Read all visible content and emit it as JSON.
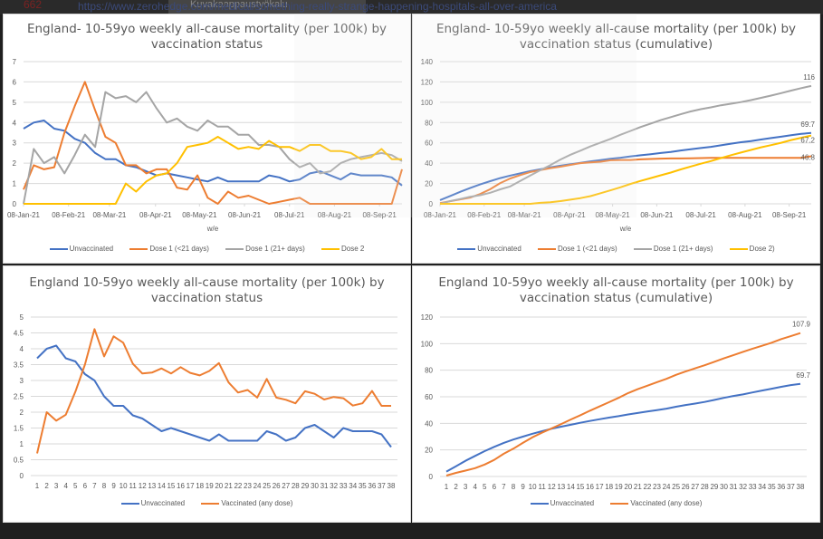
{
  "browser": {
    "counter": "662",
    "url": "https://www.zerohedge.com/medical/something-really-strange-happening-hospitals-all-over-america",
    "ghost_text": "Kuvakaappaustyökalu"
  },
  "colors": {
    "unvaccinated": "#4472c4",
    "dose1_lt21": "#ed7d31",
    "dose1_21plus": "#a5a5a5",
    "dose2": "#ffc000",
    "vaccinated_any": "#ed7d31",
    "grid": "#d9d9d9",
    "axis_text": "#595959"
  },
  "chart_data": [
    {
      "id": "tl",
      "type": "line",
      "title_line1": "England- 10-59yo weekly all-cause mortality (per 100k) by",
      "title_line2": "vaccination status",
      "xlabel": "w/e",
      "ylabel": "",
      "ylim": [
        0,
        7
      ],
      "yticks": [
        0,
        1,
        2,
        3,
        4,
        5,
        6,
        7
      ],
      "grid": true,
      "legend_position": "bottom",
      "x_tick_labels": [
        "08-Jan-21",
        "08-Feb-21",
        "08-Mar-21",
        "08-Apr-21",
        "08-May-21",
        "08-Jun-21",
        "08-Jul-21",
        "08-Aug-21",
        "08-Sep-21"
      ],
      "x_tick_week_index": [
        0,
        4.4,
        8.4,
        12.9,
        17.2,
        21.6,
        26.0,
        30.4,
        34.8
      ],
      "n_points": 38,
      "series": [
        {
          "name": "Unvaccinated",
          "color_key": "unvaccinated",
          "values": [
            3.7,
            4.0,
            4.1,
            3.7,
            3.6,
            3.2,
            3.0,
            2.5,
            2.2,
            2.2,
            1.9,
            1.8,
            1.6,
            1.4,
            1.5,
            1.4,
            1.3,
            1.2,
            1.1,
            1.3,
            1.1,
            1.1,
            1.1,
            1.1,
            1.4,
            1.3,
            1.1,
            1.2,
            1.5,
            1.6,
            1.4,
            1.2,
            1.5,
            1.4,
            1.4,
            1.4,
            1.3,
            0.9
          ]
        },
        {
          "name": "Dose 1 (<21 days)",
          "color_key": "dose1_lt21",
          "values": [
            0.7,
            1.9,
            1.7,
            1.8,
            3.5,
            4.8,
            6.0,
            4.6,
            3.3,
            3.0,
            1.9,
            1.9,
            1.5,
            1.7,
            1.7,
            0.8,
            0.7,
            1.4,
            0.3,
            0.0,
            0.6,
            0.3,
            0.4,
            0.2,
            0.0,
            0.1,
            0.2,
            0.3,
            0.0,
            0.0,
            0.0,
            0.0,
            0.0,
            0.0,
            0.0,
            0.0,
            0.0,
            1.7
          ]
        },
        {
          "name": "Dose 1 (21+ days)",
          "color_key": "dose1_21plus",
          "values": [
            0.0,
            2.7,
            2.0,
            2.3,
            1.5,
            2.4,
            3.4,
            2.8,
            5.5,
            5.2,
            5.3,
            5.0,
            5.5,
            4.7,
            4.0,
            4.2,
            3.8,
            3.6,
            4.1,
            3.8,
            3.8,
            3.4,
            3.4,
            2.9,
            2.9,
            2.8,
            2.2,
            1.8,
            2.0,
            1.5,
            1.6,
            2.0,
            2.2,
            2.3,
            2.4,
            2.5,
            2.4,
            2.1
          ]
        },
        {
          "name": "Dose 2",
          "color_key": "dose2",
          "values": [
            0,
            0,
            0,
            0,
            0,
            0,
            0,
            0,
            0,
            0,
            1.0,
            0.6,
            1.1,
            1.4,
            1.5,
            2.0,
            2.8,
            2.9,
            3.0,
            3.3,
            3.0,
            2.7,
            2.8,
            2.7,
            3.1,
            2.8,
            2.8,
            2.6,
            2.9,
            2.9,
            2.6,
            2.6,
            2.5,
            2.2,
            2.3,
            2.7,
            2.2,
            2.2
          ]
        }
      ]
    },
    {
      "id": "tr",
      "type": "line",
      "title_line1": "England- 10-59yo weekly all-cause mortality (per 100k) by",
      "title_line2": "vaccination status (cumulative)",
      "xlabel": "w/e",
      "ylabel": "",
      "ylim": [
        0,
        140
      ],
      "yticks": [
        0,
        20,
        40,
        60,
        80,
        100,
        120,
        140
      ],
      "grid": true,
      "legend_position": "bottom",
      "x_tick_labels": [
        "08-Jan-21",
        "08-Feb-21",
        "08-Mar-21",
        "08-Apr-21",
        "08-May-21",
        "08-Jun-21",
        "08-Jul-21",
        "08-Aug-21",
        "08-Sep-21"
      ],
      "x_tick_week_index": [
        0,
        4.4,
        8.4,
        12.9,
        17.2,
        21.6,
        26.0,
        30.4,
        34.8
      ],
      "n_points": 38,
      "end_labels": [
        "69.7",
        "46.8",
        "116",
        "67.2"
      ],
      "series": [
        {
          "name": "Unvaccinated",
          "color_key": "unvaccinated",
          "values": [
            3.7,
            7.7,
            11.8,
            15.5,
            19.1,
            22.3,
            25.3,
            27.8,
            30.0,
            32.2,
            34.1,
            35.9,
            37.5,
            38.9,
            40.4,
            41.8,
            43.1,
            44.3,
            45.4,
            46.7,
            47.8,
            48.9,
            50.0,
            51.1,
            52.5,
            53.8,
            54.9,
            56.1,
            57.6,
            59.2,
            60.6,
            61.8,
            63.3,
            64.7,
            66.1,
            67.5,
            68.8,
            69.7
          ]
        },
        {
          "name": "Dose 1 (<21 days)",
          "color_key": "dose1_lt21",
          "values": [
            0.7,
            2.6,
            4.3,
            6.1,
            9.6,
            14.4,
            20.4,
            25.0,
            28.3,
            31.3,
            33.2,
            35.1,
            36.6,
            38.3,
            40.0,
            40.8,
            41.5,
            42.9,
            43.2,
            43.2,
            43.8,
            44.1,
            44.5,
            44.7,
            44.7,
            44.8,
            45.0,
            45.3,
            45.3,
            45.3,
            45.3,
            45.3,
            45.3,
            45.3,
            45.3,
            45.3,
            45.3,
            46.8
          ]
        },
        {
          "name": "Dose 1 (21+ days)",
          "color_key": "dose1_21plus",
          "values": [
            0.0,
            2.7,
            4.7,
            7.0,
            8.5,
            10.9,
            14.3,
            17.1,
            22.6,
            27.8,
            33.1,
            38.1,
            43.6,
            48.3,
            52.3,
            56.5,
            60.3,
            63.9,
            68.0,
            71.8,
            75.6,
            79.0,
            82.4,
            85.3,
            88.2,
            91.0,
            93.2,
            95.0,
            97.0,
            98.5,
            100.1,
            102.1,
            104.3,
            106.6,
            109.0,
            111.5,
            113.9,
            116.0
          ]
        },
        {
          "name": "Dose 2)",
          "color_key": "dose2",
          "values": [
            0,
            0,
            0,
            0,
            0,
            0,
            0,
            0,
            0,
            0,
            1.0,
            1.6,
            2.7,
            4.1,
            5.6,
            7.6,
            10.4,
            13.3,
            16.3,
            19.6,
            22.6,
            25.3,
            28.1,
            30.8,
            33.9,
            36.7,
            39.5,
            42.1,
            45.0,
            47.9,
            50.5,
            53.1,
            55.6,
            57.8,
            60.1,
            62.8,
            65.0,
            67.2
          ]
        }
      ]
    },
    {
      "id": "bl",
      "type": "line",
      "title_line1": "England 10-59yo weekly all-cause mortality (per 100k) by",
      "title_line2": "vaccination status",
      "xlabel": "",
      "ylabel": "",
      "ylim": [
        0,
        5
      ],
      "yticks": [
        0,
        0.5,
        1,
        1.5,
        2,
        2.5,
        3,
        3.5,
        4,
        4.5,
        5
      ],
      "grid": true,
      "legend_position": "bottom",
      "x": [
        1,
        2,
        3,
        4,
        5,
        6,
        7,
        8,
        9,
        10,
        11,
        12,
        13,
        14,
        15,
        16,
        17,
        18,
        19,
        20,
        21,
        22,
        23,
        24,
        25,
        26,
        27,
        28,
        29,
        30,
        31,
        32,
        33,
        34,
        35,
        36,
        37,
        38
      ],
      "series": [
        {
          "name": "Unvaccinated",
          "color_key": "unvaccinated",
          "values": [
            3.7,
            4.0,
            4.1,
            3.7,
            3.6,
            3.2,
            3.0,
            2.5,
            2.2,
            2.2,
            1.9,
            1.8,
            1.6,
            1.4,
            1.5,
            1.4,
            1.3,
            1.2,
            1.1,
            1.3,
            1.1,
            1.1,
            1.1,
            1.1,
            1.4,
            1.3,
            1.1,
            1.2,
            1.5,
            1.6,
            1.4,
            1.2,
            1.5,
            1.4,
            1.4,
            1.4,
            1.3,
            0.9
          ]
        },
        {
          "name": "Vaccinated (any dose)",
          "color_key": "vaccinated_any",
          "values": [
            0.7,
            2.0,
            1.73,
            1.92,
            2.65,
            3.5,
            4.62,
            3.76,
            4.39,
            4.19,
            3.53,
            3.22,
            3.25,
            3.38,
            3.22,
            3.42,
            3.24,
            3.16,
            3.3,
            3.55,
            2.94,
            2.62,
            2.7,
            2.46,
            3.05,
            2.46,
            2.39,
            2.28,
            2.66,
            2.58,
            2.4,
            2.48,
            2.44,
            2.21,
            2.28,
            2.67,
            2.2,
            2.2
          ]
        }
      ]
    },
    {
      "id": "br",
      "type": "line",
      "title_line1": "England 10-59yo weekly all-cause mortality (per 100k) by",
      "title_line2": "vaccination status (cumulative)",
      "xlabel": "",
      "ylabel": "",
      "ylim": [
        0,
        120
      ],
      "yticks": [
        0,
        20,
        40,
        60,
        80,
        100,
        120
      ],
      "grid": true,
      "legend_position": "bottom",
      "x": [
        1,
        2,
        3,
        4,
        5,
        6,
        7,
        8,
        9,
        10,
        11,
        12,
        13,
        14,
        15,
        16,
        17,
        18,
        19,
        20,
        21,
        22,
        23,
        24,
        25,
        26,
        27,
        28,
        29,
        30,
        31,
        32,
        33,
        34,
        35,
        36,
        37,
        38
      ],
      "end_labels": [
        "69.7",
        "107.9"
      ],
      "series": [
        {
          "name": "Unvaccinated",
          "color_key": "unvaccinated",
          "values": [
            3.7,
            7.7,
            11.8,
            15.5,
            19.1,
            22.3,
            25.3,
            27.8,
            30.0,
            32.2,
            34.1,
            35.9,
            37.5,
            38.9,
            40.4,
            41.8,
            43.1,
            44.3,
            45.4,
            46.7,
            47.8,
            48.9,
            50.0,
            51.1,
            52.5,
            53.8,
            54.9,
            56.1,
            57.6,
            59.2,
            60.6,
            61.8,
            63.3,
            64.7,
            66.1,
            67.5,
            68.8,
            69.7
          ]
        },
        {
          "name": "Vaccinated (any dose)",
          "color_key": "vaccinated_any",
          "values": [
            0.7,
            2.7,
            4.4,
            6.3,
            9.0,
            12.5,
            17.1,
            20.9,
            25.3,
            29.5,
            33.0,
            36.2,
            39.5,
            42.9,
            46.1,
            49.5,
            52.7,
            55.9,
            59.2,
            62.8,
            65.7,
            68.3,
            71.0,
            73.5,
            76.5,
            79.0,
            81.4,
            83.7,
            86.3,
            88.9,
            91.3,
            93.8,
            96.2,
            98.4,
            100.7,
            103.4,
            105.6,
            107.9
          ]
        }
      ]
    }
  ]
}
